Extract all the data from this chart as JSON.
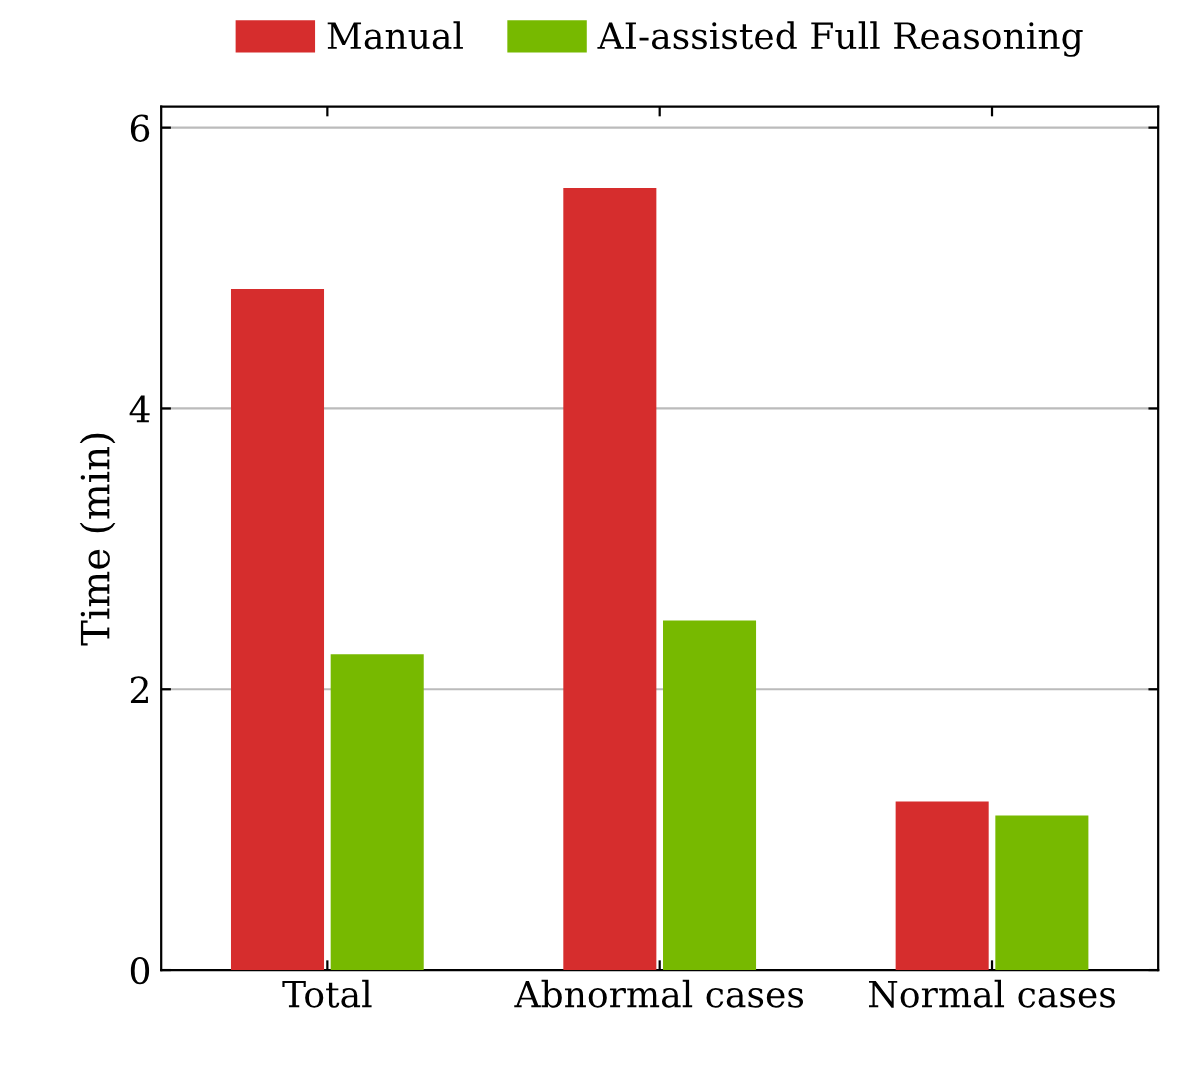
{
  "chart_data": {
    "type": "bar",
    "ylabel": "Time (min)",
    "categories": [
      "Total",
      "Abnormal cases",
      "Normal cases"
    ],
    "series": [
      {
        "name": "Manual",
        "color": "#d62d2d",
        "values": [
          4.85,
          5.57,
          1.2
        ]
      },
      {
        "name": "AI-assisted Full Reasoning",
        "color": "#77b900",
        "values": [
          2.25,
          2.49,
          1.1
        ]
      }
    ],
    "ylim": [
      0,
      6.15
    ],
    "yticks": [
      0,
      2,
      4,
      6
    ],
    "grid": "y",
    "legend": "top"
  }
}
